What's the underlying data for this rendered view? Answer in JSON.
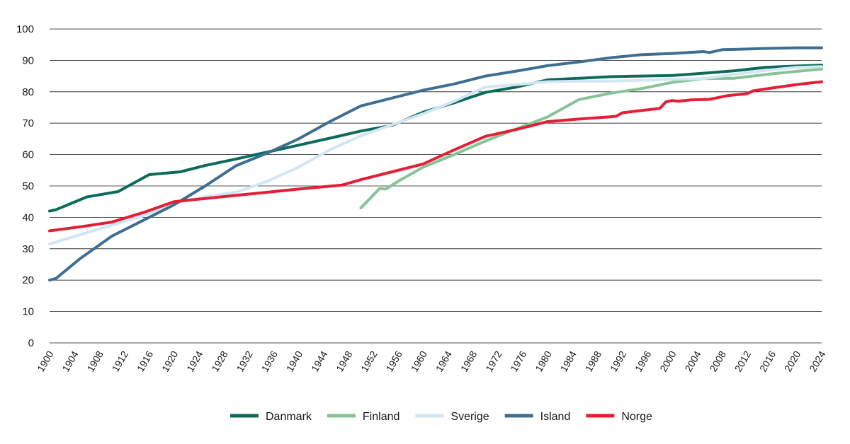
{
  "chart_data": {
    "type": "line",
    "title": "",
    "xlabel": "",
    "ylabel": "",
    "xlim": [
      1900,
      2024
    ],
    "ylim": [
      0,
      100
    ],
    "yticks": [
      0,
      10,
      20,
      30,
      40,
      50,
      60,
      70,
      80,
      90,
      100
    ],
    "xticks": [
      1900,
      1904,
      1908,
      1912,
      1916,
      1920,
      1924,
      1928,
      1932,
      1936,
      1940,
      1944,
      1948,
      1952,
      1956,
      1960,
      1964,
      1968,
      1972,
      1976,
      1980,
      1984,
      1988,
      1992,
      1996,
      2000,
      2004,
      2008,
      2012,
      2016,
      2020,
      2024
    ],
    "grid": "horizontal",
    "legend_position": "bottom-center",
    "series": [
      {
        "name": "Danmark",
        "color": "#0e6b5a",
        "points": [
          [
            1900,
            42
          ],
          [
            1901,
            42.4
          ],
          [
            1906,
            46.5
          ],
          [
            1911,
            48.2
          ],
          [
            1916,
            53.6
          ],
          [
            1921,
            54.5
          ],
          [
            1925,
            56.5
          ],
          [
            1930,
            58.6
          ],
          [
            1935,
            60.8
          ],
          [
            1940,
            63
          ],
          [
            1945,
            65.2
          ],
          [
            1950,
            67.5
          ],
          [
            1955,
            69.3
          ],
          [
            1960,
            73.5
          ],
          [
            1965,
            76.5
          ],
          [
            1970,
            79.8
          ],
          [
            1975,
            81.5
          ],
          [
            1980,
            83.8
          ],
          [
            1985,
            84.3
          ],
          [
            1990,
            84.8
          ],
          [
            1995,
            85
          ],
          [
            2000,
            85.2
          ],
          [
            2005,
            85.9
          ],
          [
            2010,
            86.7
          ],
          [
            2015,
            87.8
          ],
          [
            2020,
            88.2
          ],
          [
            2024,
            88.5
          ]
        ]
      },
      {
        "name": "Finland",
        "color": "#86c496",
        "points": [
          [
            1950,
            43
          ],
          [
            1953,
            49.2
          ],
          [
            1954,
            49
          ],
          [
            1956,
            51.5
          ],
          [
            1960,
            56
          ],
          [
            1965,
            60
          ],
          [
            1970,
            64.3
          ],
          [
            1975,
            68.2
          ],
          [
            1980,
            72
          ],
          [
            1985,
            77.5
          ],
          [
            1990,
            79.5
          ],
          [
            1995,
            81
          ],
          [
            2000,
            83
          ],
          [
            2005,
            84.2
          ],
          [
            2010,
            84.3
          ],
          [
            2015,
            85.5
          ],
          [
            2020,
            86.5
          ],
          [
            2024,
            87.2
          ]
        ]
      },
      {
        "name": "Sverige",
        "color": "#d2e6f4",
        "points": [
          [
            1900,
            31.5
          ],
          [
            1905,
            34.5
          ],
          [
            1910,
            37.5
          ],
          [
            1915,
            40.5
          ],
          [
            1920,
            44.5
          ],
          [
            1925,
            46.5
          ],
          [
            1930,
            48
          ],
          [
            1935,
            51.5
          ],
          [
            1940,
            56
          ],
          [
            1945,
            61.5
          ],
          [
            1950,
            66
          ],
          [
            1955,
            69.5
          ],
          [
            1960,
            73
          ],
          [
            1965,
            77
          ],
          [
            1970,
            81.5
          ],
          [
            1975,
            82.3
          ],
          [
            1980,
            83.2
          ],
          [
            1985,
            83.4
          ],
          [
            1990,
            83.4
          ],
          [
            1995,
            83.6
          ],
          [
            2000,
            84
          ],
          [
            2005,
            84.2
          ],
          [
            2010,
            85.5
          ],
          [
            2015,
            86.8
          ],
          [
            2020,
            87.8
          ],
          [
            2024,
            88
          ]
        ]
      },
      {
        "name": "Island",
        "color": "#3e6e92",
        "points": [
          [
            1900,
            20
          ],
          [
            1901,
            20.5
          ],
          [
            1905,
            27
          ],
          [
            1910,
            34
          ],
          [
            1915,
            39
          ],
          [
            1920,
            44
          ],
          [
            1925,
            50
          ],
          [
            1930,
            56.5
          ],
          [
            1935,
            60.5
          ],
          [
            1940,
            65
          ],
          [
            1945,
            70.5
          ],
          [
            1950,
            75.5
          ],
          [
            1955,
            78
          ],
          [
            1960,
            80.5
          ],
          [
            1965,
            82.5
          ],
          [
            1970,
            85
          ],
          [
            1975,
            86.6
          ],
          [
            1980,
            88.3
          ],
          [
            1985,
            89.5
          ],
          [
            1990,
            90.8
          ],
          [
            1995,
            91.8
          ],
          [
            2000,
            92.2
          ],
          [
            2005,
            92.8
          ],
          [
            2006,
            92.5
          ],
          [
            2008,
            93.4
          ],
          [
            2010,
            93.5
          ],
          [
            2015,
            93.8
          ],
          [
            2020,
            94
          ],
          [
            2024,
            94
          ]
        ]
      },
      {
        "name": "Norge",
        "color": "#e41e34",
        "points": [
          [
            1900,
            35.7
          ],
          [
            1905,
            37
          ],
          [
            1910,
            38.5
          ],
          [
            1915,
            41.5
          ],
          [
            1920,
            45
          ],
          [
            1925,
            46
          ],
          [
            1930,
            47
          ],
          [
            1935,
            48
          ],
          [
            1940,
            49
          ],
          [
            1947,
            50.3
          ],
          [
            1950,
            52
          ],
          [
            1955,
            54.5
          ],
          [
            1960,
            57
          ],
          [
            1965,
            61.5
          ],
          [
            1970,
            65.8
          ],
          [
            1975,
            68
          ],
          [
            1980,
            70.5
          ],
          [
            1985,
            71.3
          ],
          [
            1990,
            72
          ],
          [
            1991,
            72.2
          ],
          [
            1992,
            73.3
          ],
          [
            1995,
            74
          ],
          [
            1998,
            74.7
          ],
          [
            1999,
            76.8
          ],
          [
            2000,
            77.2
          ],
          [
            2001,
            77
          ],
          [
            2003,
            77.4
          ],
          [
            2006,
            77.6
          ],
          [
            2009,
            78.8
          ],
          [
            2012,
            79.4
          ],
          [
            2013,
            80.3
          ],
          [
            2016,
            81.2
          ],
          [
            2020,
            82.3
          ],
          [
            2024,
            83.2
          ]
        ]
      }
    ]
  }
}
